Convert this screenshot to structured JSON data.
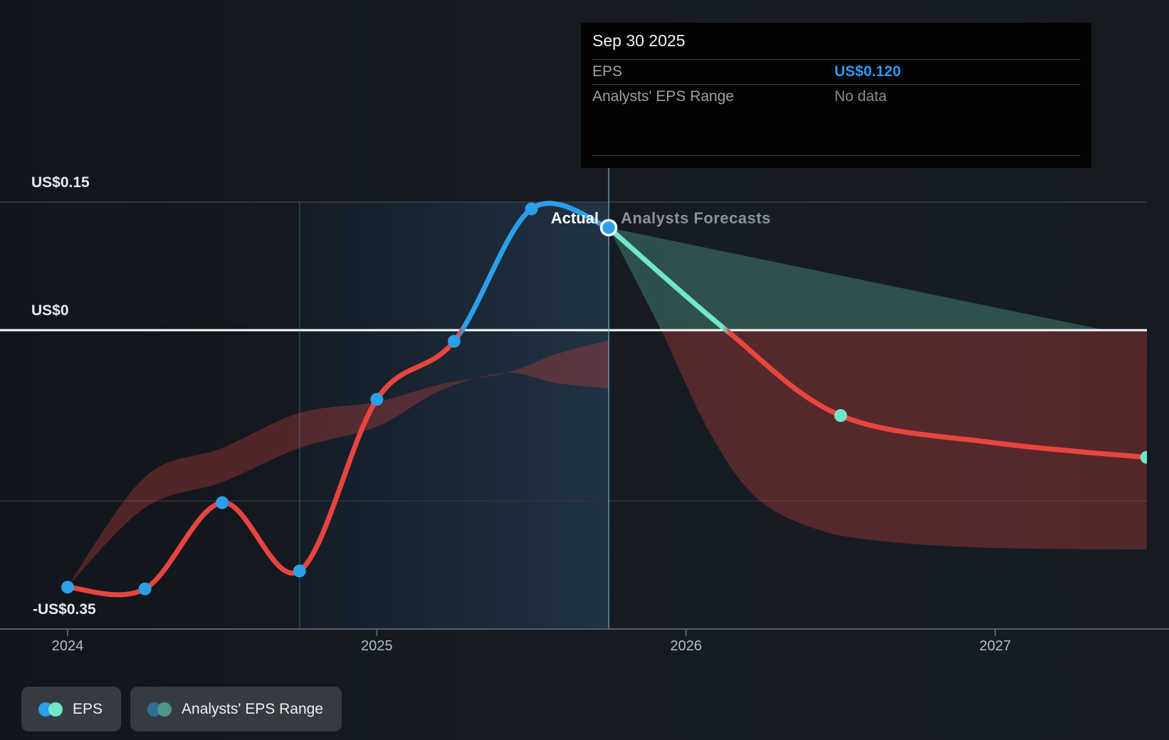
{
  "tooltip": {
    "date": "Sep 30 2025",
    "rows": [
      {
        "label": "EPS",
        "value": "US$0.120"
      },
      {
        "label": "Analysts' EPS Range",
        "value": "No data"
      }
    ]
  },
  "labels": {
    "actual": "Actual",
    "forecast": "Analysts Forecasts"
  },
  "y_axis": {
    "labels": [
      {
        "text": "US$0.15"
      },
      {
        "text": "US$0"
      },
      {
        "text": "-US$0.35"
      }
    ]
  },
  "x_axis": {
    "ticks": [
      "2024",
      "2025",
      "2026",
      "2027"
    ]
  },
  "legend": [
    {
      "label": "EPS"
    },
    {
      "label": "Analysts' EPS Range"
    }
  ],
  "colors": {
    "eps_negative": "#e8453e",
    "eps_positive": "#2b9fe8",
    "forecast_teal": "#6fe7c8",
    "zero_line": "#fbfcfd",
    "gridline": "#39414b",
    "gridline_faint": "#2e353f",
    "axis_line": "#5a6067",
    "divider_line": "rgba(125,170,205,0.60)",
    "region_edge_line": "rgba(100,150,200,0.32)",
    "range_fill_red": "rgba(229,70,63,0.30)",
    "range_fill_teal": "rgba(111,231,200,0.26)",
    "actual_region_tint_left": "rgba(36,94,140,0.07)",
    "actual_region_tint_right": "rgba(80,160,220,0.18)",
    "dot_ring": "#ffffff"
  },
  "chart_data": {
    "type": "line",
    "title": "EPS actual vs analysts forecast (US$)",
    "x_ticks": [
      2024,
      2025,
      2026,
      2027
    ],
    "x_range": [
      2023.78,
      2027.49
    ],
    "y_gridlines": [
      0.15,
      0,
      -0.2
    ],
    "y_axis_bottom": -0.35,
    "ylim": [
      -0.35,
      0.19
    ],
    "divider_x": 2025.75,
    "actual_region_start_x": 2024.75,
    "series": {
      "eps_actual": {
        "x": [
          2024.0,
          2024.25,
          2024.5,
          2024.75,
          2025.0,
          2025.25,
          2025.5,
          2025.75
        ],
        "y": [
          -0.301,
          -0.303,
          -0.202,
          -0.282,
          -0.081,
          -0.013,
          0.142,
          0.12
        ]
      },
      "eps_forecast_markers": {
        "x": [
          2025.75,
          2026.5,
          2027.49
        ],
        "y": [
          0.12,
          -0.1,
          -0.149
        ]
      },
      "eps_forecast_line": {
        "x": [
          2025.75,
          2026.13,
          2026.5,
          2027.0,
          2027.49
        ],
        "y": [
          0.12,
          0.0,
          -0.1,
          -0.132,
          -0.149
        ]
      }
    },
    "historical_range": {
      "upper": {
        "x": [
          2024.0,
          2024.25,
          2024.5,
          2024.75,
          2025.0,
          2025.21,
          2025.42,
          2025.58,
          2025.75
        ],
        "y": [
          -0.3,
          -0.172,
          -0.138,
          -0.097,
          -0.084,
          -0.063,
          -0.05,
          -0.028,
          -0.012
        ]
      },
      "lower": {
        "x": [
          2024.0,
          2024.25,
          2024.5,
          2024.75,
          2025.0,
          2025.21,
          2025.42,
          2025.58,
          2025.75
        ],
        "y": [
          -0.3,
          -0.208,
          -0.178,
          -0.138,
          -0.113,
          -0.07,
          -0.05,
          -0.062,
          -0.068
        ]
      }
    },
    "forecast_range": {
      "upper": {
        "x": [
          2025.75,
          2026.5,
          2027.49
        ],
        "y": [
          0.12,
          0.064,
          -0.01
        ]
      },
      "lower": {
        "x": [
          2025.75,
          2025.92,
          2026.08,
          2026.23,
          2026.43,
          2026.66,
          2027.0,
          2027.49
        ],
        "y": [
          0.12,
          0.0,
          -0.122,
          -0.197,
          -0.234,
          -0.248,
          -0.255,
          -0.257
        ]
      }
    }
  }
}
